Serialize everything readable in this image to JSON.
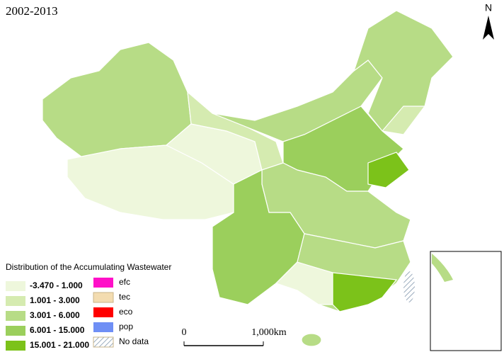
{
  "title": "2002-2013",
  "north_arrow": "N",
  "legend": {
    "title": "Distribution of the Accumulating Wastewater",
    "classes": [
      {
        "label": "-3.470 - 1.000",
        "color": "#eef7dc"
      },
      {
        "label": "1.001 - 3.000",
        "color": "#d5ebb0"
      },
      {
        "label": "3.001 - 6.000",
        "color": "#b7dc86"
      },
      {
        "label": "6.001 - 15.000",
        "color": "#9bcf5c"
      },
      {
        "label": "15.001 - 21.000",
        "color": "#7cc21a"
      }
    ],
    "symbols": [
      {
        "label": "efc",
        "color": "#ff10c8"
      },
      {
        "label": "tec",
        "color": "#f3dcb0"
      },
      {
        "label": "eco",
        "color": "#ff0000"
      },
      {
        "label": "pop",
        "color": "#6f8ff5"
      },
      {
        "label": "No data",
        "color": "#9aabbd"
      }
    ]
  },
  "scale_bar": {
    "labels": [
      "0",
      "1,000km"
    ]
  }
}
